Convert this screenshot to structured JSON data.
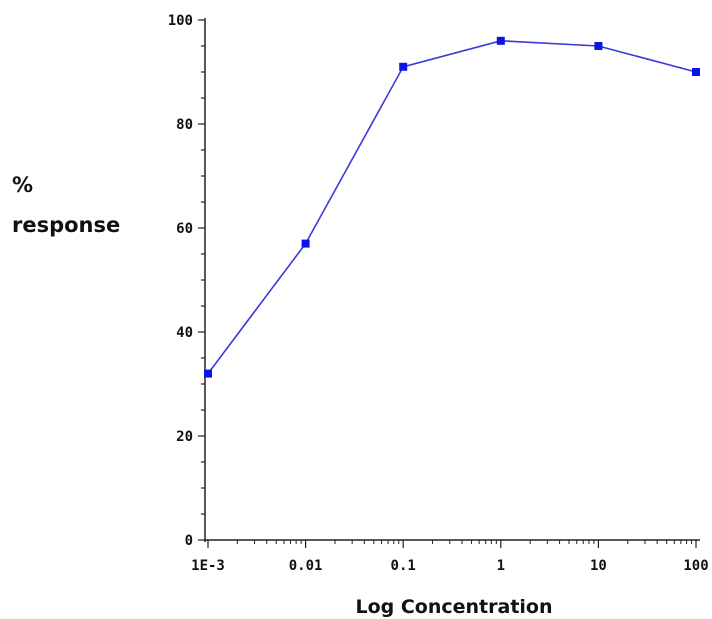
{
  "chart_data": {
    "type": "line",
    "x_scale": "log",
    "x": [
      0.001,
      0.01,
      0.1,
      1,
      10,
      100
    ],
    "x_tick_labels": [
      "1E-3",
      "0.01",
      "0.1",
      "1",
      "10",
      "100"
    ],
    "series": [
      {
        "values": [
          32,
          57,
          91,
          96,
          95,
          90
        ]
      }
    ],
    "xlabel": "Log Concentration",
    "ylabel_line1": "%",
    "ylabel_line2": "response",
    "ylim": [
      0,
      100
    ],
    "y_ticks": [
      0,
      20,
      40,
      60,
      80,
      100
    ],
    "grid": false,
    "colors": {
      "line": "#3a3ad6",
      "marker": "#0a14e6",
      "axis": "#222222"
    }
  }
}
